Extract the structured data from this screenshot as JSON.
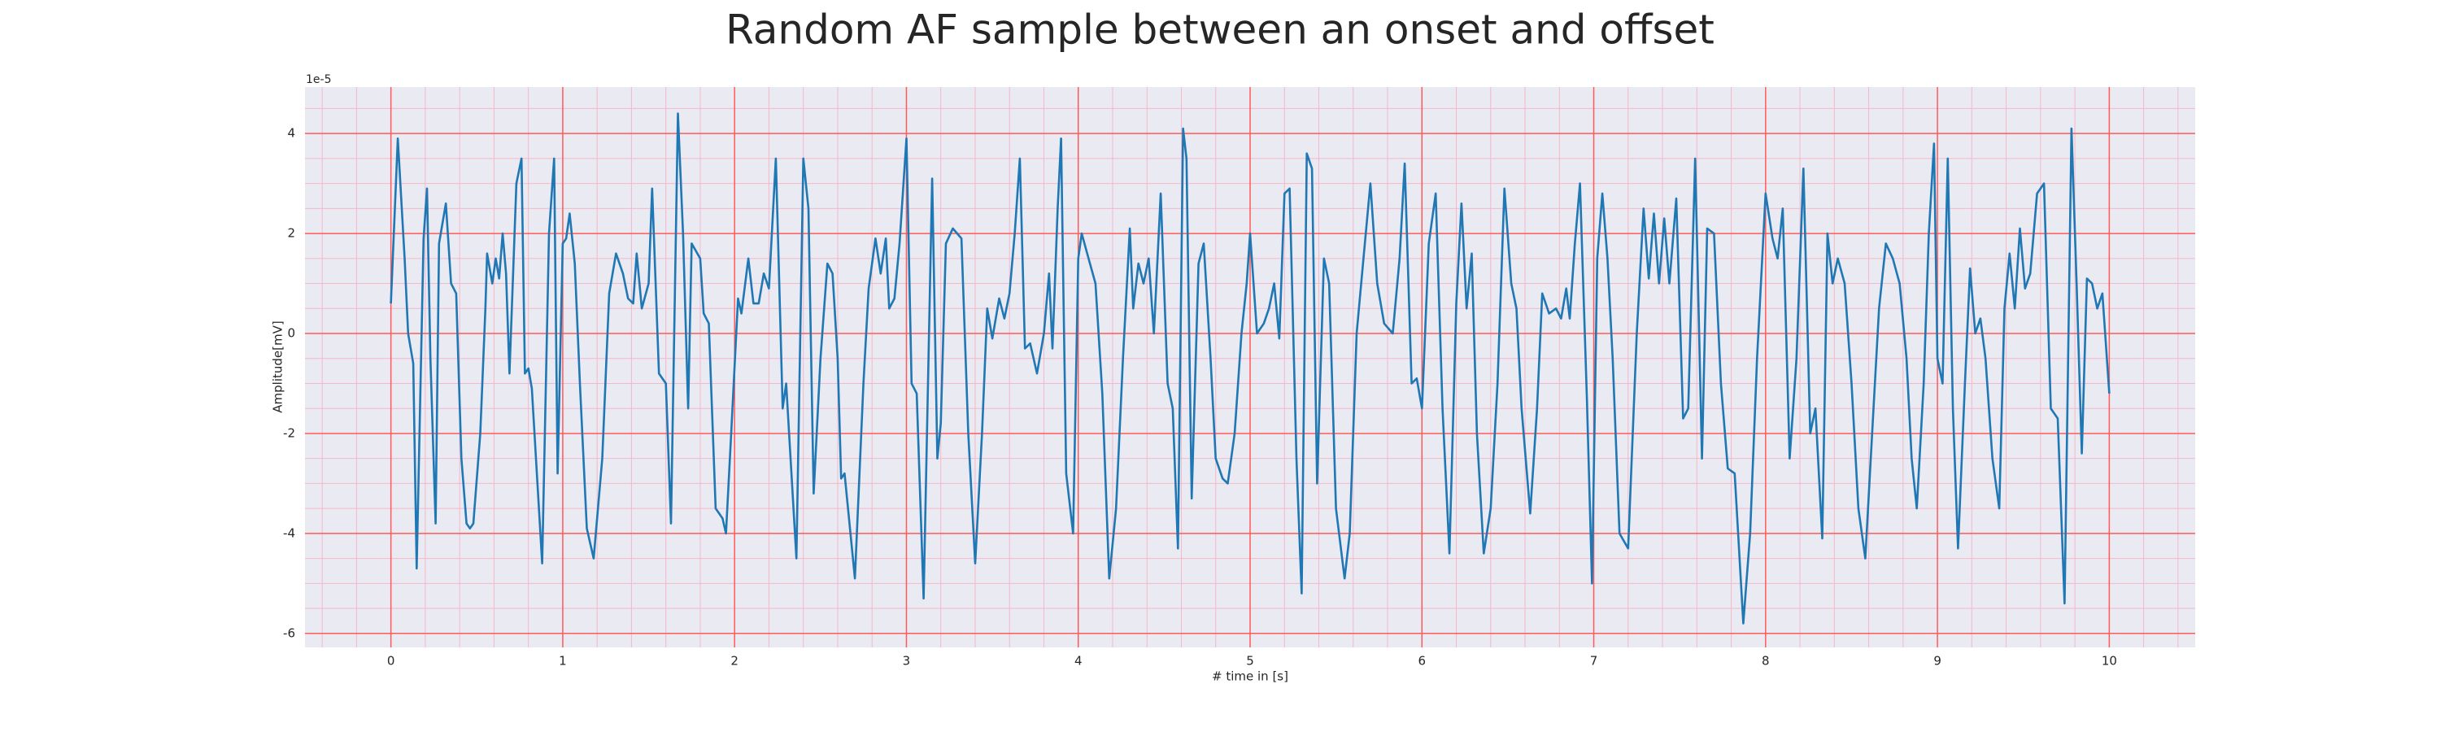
{
  "chart_data": {
    "type": "line",
    "title": "Random AF sample between an onset and offset",
    "xlabel": "# time in [s]",
    "ylabel": "Amplitude[mV]",
    "y_offset_label": "1e-5",
    "color": "#1f77b4",
    "background": "#eaeaf2",
    "grid": true,
    "grid_color": "#ff5a5a",
    "minor_grid_color": "#f4b8c8",
    "xlim": [
      -0.5,
      10.5
    ],
    "ylim": [
      -6.28,
      4.93
    ],
    "xticks": [
      0,
      1,
      2,
      3,
      4,
      5,
      6,
      7,
      8,
      9,
      10
    ],
    "yticks": [
      -6,
      -4,
      -2,
      0,
      2,
      4
    ],
    "xminorticks": [
      -0.4,
      -0.2,
      0.2,
      0.4,
      0.6,
      0.8,
      1.2,
      1.4,
      1.6,
      1.8,
      2.2,
      2.4,
      2.6,
      2.8,
      3.2,
      3.4,
      3.6,
      3.8,
      4.2,
      4.4,
      4.6,
      4.8,
      5.2,
      5.4,
      5.6,
      5.8,
      6.2,
      6.4,
      6.6,
      6.8,
      7.2,
      7.4,
      7.6,
      7.8,
      8.2,
      8.4,
      8.6,
      8.8,
      9.2,
      9.4,
      9.6,
      9.8,
      10.2,
      10.4
    ],
    "yminorticks": [
      -5.5,
      -5,
      -4.5,
      -3.5,
      -3,
      -2.5,
      -1.5,
      -1,
      -0.5,
      0.5,
      1,
      1.5,
      2.5,
      3,
      3.5,
      4.5
    ],
    "x": [
      0.0,
      0.04,
      0.08,
      0.1,
      0.13,
      0.15,
      0.19,
      0.21,
      0.23,
      0.26,
      0.28,
      0.32,
      0.35,
      0.38,
      0.41,
      0.44,
      0.46,
      0.48,
      0.52,
      0.55,
      0.56,
      0.59,
      0.61,
      0.63,
      0.65,
      0.67,
      0.69,
      0.73,
      0.76,
      0.78,
      0.8,
      0.82,
      0.88,
      0.92,
      0.95,
      0.97,
      1.0,
      1.02,
      1.04,
      1.07,
      1.1,
      1.14,
      1.18,
      1.23,
      1.27,
      1.31,
      1.35,
      1.38,
      1.41,
      1.43,
      1.46,
      1.5,
      1.52,
      1.56,
      1.6,
      1.63,
      1.67,
      1.7,
      1.73,
      1.75,
      1.8,
      1.82,
      1.85,
      1.89,
      1.93,
      1.95,
      1.98,
      2.02,
      2.04,
      2.08,
      2.11,
      2.14,
      2.17,
      2.2,
      2.24,
      2.28,
      2.3,
      2.36,
      2.4,
      2.43,
      2.46,
      2.5,
      2.54,
      2.57,
      2.6,
      2.62,
      2.64,
      2.7,
      2.75,
      2.78,
      2.82,
      2.85,
      2.88,
      2.9,
      2.93,
      2.96,
      3.0,
      3.03,
      3.06,
      3.1,
      3.15,
      3.18,
      3.2,
      3.23,
      3.27,
      3.32,
      3.36,
      3.4,
      3.44,
      3.47,
      3.5,
      3.54,
      3.57,
      3.6,
      3.63,
      3.66,
      3.69,
      3.72,
      3.76,
      3.8,
      3.83,
      3.85,
      3.88,
      3.9,
      3.93,
      3.97,
      4.0,
      4.02,
      4.06,
      4.1,
      4.14,
      4.18,
      4.22,
      4.26,
      4.3,
      4.32,
      4.35,
      4.38,
      4.41,
      4.44,
      4.48,
      4.52,
      4.55,
      4.58,
      4.61,
      4.63,
      4.66,
      4.7,
      4.73,
      4.77,
      4.8,
      4.84,
      4.87,
      4.91,
      4.95,
      4.98,
      5.0,
      5.04,
      5.08,
      5.11,
      5.14,
      5.17,
      5.2,
      5.23,
      5.27,
      5.3,
      5.33,
      5.36,
      5.39,
      5.43,
      5.46,
      5.5,
      5.55,
      5.58,
      5.62,
      5.66,
      5.7,
      5.74,
      5.78,
      5.83,
      5.87,
      5.9,
      5.94,
      5.97,
      6.0,
      6.04,
      6.08,
      6.12,
      6.16,
      6.2,
      6.23,
      6.26,
      6.29,
      6.32,
      6.36,
      6.4,
      6.44,
      6.48,
      6.52,
      6.55,
      6.58,
      6.63,
      6.67,
      6.7,
      6.74,
      6.78,
      6.81,
      6.84,
      6.86,
      6.89,
      6.92,
      6.96,
      6.99,
      7.02,
      7.05,
      7.08,
      7.11,
      7.15,
      7.2,
      7.25,
      7.29,
      7.32,
      7.35,
      7.38,
      7.41,
      7.44,
      7.48,
      7.52,
      7.55,
      7.59,
      7.63,
      7.66,
      7.7,
      7.74,
      7.78,
      7.82,
      7.87,
      7.91,
      7.95,
      8.0,
      8.04,
      8.07,
      8.1,
      8.14,
      8.18,
      8.22,
      8.26,
      8.29,
      8.33,
      8.36,
      8.39,
      8.42,
      8.46,
      8.5,
      8.54,
      8.58,
      8.62,
      8.66,
      8.7,
      8.74,
      8.78,
      8.82,
      8.85,
      8.88,
      8.92,
      8.95,
      8.98,
      9.0,
      9.03,
      9.06,
      9.09,
      9.12,
      9.16,
      9.19,
      9.22,
      9.25,
      9.28,
      9.32,
      9.36,
      9.39,
      9.42,
      9.45,
      9.48,
      9.51,
      9.54,
      9.58,
      9.62,
      9.66,
      9.7,
      9.74,
      9.78,
      9.81,
      9.84,
      9.87,
      9.9,
      9.93,
      9.96,
      10.0
    ],
    "values": [
      0.6,
      3.9,
      1.5,
      0.0,
      -0.6,
      -4.7,
      1.9,
      2.9,
      -0.5,
      -3.8,
      1.8,
      2.6,
      1.0,
      0.8,
      -2.5,
      -3.8,
      -3.9,
      -3.8,
      -2.0,
      0.5,
      1.6,
      1.0,
      1.5,
      1.1,
      2.0,
      1.2,
      -0.8,
      3.0,
      3.5,
      -0.8,
      -0.7,
      -1.1,
      -4.6,
      2.0,
      3.5,
      -2.8,
      1.8,
      1.9,
      2.4,
      1.4,
      -1.0,
      -3.9,
      -4.5,
      -2.5,
      0.8,
      1.6,
      1.2,
      0.7,
      0.6,
      1.6,
      0.5,
      1.0,
      2.9,
      -0.8,
      -1.0,
      -3.8,
      4.4,
      2.0,
      -1.5,
      1.8,
      1.5,
      0.4,
      0.2,
      -3.5,
      -3.7,
      -4.0,
      -2.0,
      0.7,
      0.4,
      1.5,
      0.6,
      0.6,
      1.2,
      0.9,
      3.5,
      -1.5,
      -1.0,
      -4.5,
      3.5,
      2.5,
      -3.2,
      -0.5,
      1.4,
      1.2,
      -0.5,
      -2.9,
      -2.8,
      -4.9,
      -1.0,
      0.9,
      1.9,
      1.2,
      1.9,
      0.5,
      0.7,
      1.8,
      3.9,
      -1.0,
      -1.2,
      -5.3,
      3.1,
      -2.5,
      -1.8,
      1.8,
      2.1,
      1.9,
      -2.0,
      -4.6,
      -2.0,
      0.5,
      -0.1,
      0.7,
      0.3,
      0.8,
      2.0,
      3.5,
      -0.3,
      -0.2,
      -0.8,
      0.0,
      1.2,
      -0.3,
      2.5,
      3.9,
      -2.8,
      -4.0,
      1.5,
      2.0,
      1.5,
      1.0,
      -1.2,
      -4.9,
      -3.5,
      -0.5,
      2.1,
      0.5,
      1.4,
      1.0,
      1.5,
      0.0,
      2.8,
      -1.0,
      -1.5,
      -4.3,
      4.1,
      3.5,
      -3.3,
      1.4,
      1.8,
      -0.5,
      -2.5,
      -2.9,
      -3.0,
      -2.0,
      0.0,
      1.0,
      2.0,
      0.0,
      0.2,
      0.5,
      1.0,
      -0.1,
      2.8,
      2.9,
      -2.5,
      -5.2,
      3.6,
      3.3,
      -3.0,
      1.5,
      1.0,
      -3.5,
      -4.9,
      -4.0,
      0.0,
      1.5,
      3.0,
      1.0,
      0.2,
      0.0,
      1.5,
      3.4,
      -1.0,
      -0.9,
      -1.5,
      1.8,
      2.8,
      -1.5,
      -4.4,
      0.6,
      2.6,
      0.5,
      1.6,
      -2.0,
      -4.4,
      -3.5,
      -1.0,
      2.9,
      1.0,
      0.5,
      -1.5,
      -3.6,
      -1.5,
      0.8,
      0.4,
      0.5,
      0.3,
      0.9,
      0.3,
      1.8,
      3.0,
      -1.3,
      -5.0,
      1.5,
      2.8,
      1.5,
      -0.5,
      -4.0,
      -4.3,
      0.0,
      2.5,
      1.1,
      2.4,
      1.0,
      2.3,
      1.0,
      2.7,
      -1.7,
      -1.5,
      3.5,
      -2.5,
      2.1,
      2.0,
      -1.0,
      -2.7,
      -2.8,
      -5.8,
      -4.0,
      -0.5,
      2.8,
      1.9,
      1.5,
      2.5,
      -2.5,
      -0.5,
      3.3,
      -2.0,
      -1.5,
      -4.1,
      2.0,
      1.0,
      1.5,
      1.0,
      -1.0,
      -3.5,
      -4.5,
      -2.0,
      0.5,
      1.8,
      1.5,
      1.0,
      -0.5,
      -2.5,
      -3.5,
      -1.0,
      2.0,
      3.8,
      -0.5,
      -1.0,
      3.5,
      -1.5,
      -4.3,
      -1.0,
      1.3,
      0.0,
      0.3,
      -0.5,
      -2.5,
      -3.5,
      0.5,
      1.6,
      0.5,
      2.1,
      0.9,
      1.2,
      2.8,
      3.0,
      -1.5,
      -1.7,
      -5.4,
      4.1,
      1.0,
      -2.4,
      1.1,
      1.0,
      0.5,
      0.8,
      -1.2
    ]
  }
}
